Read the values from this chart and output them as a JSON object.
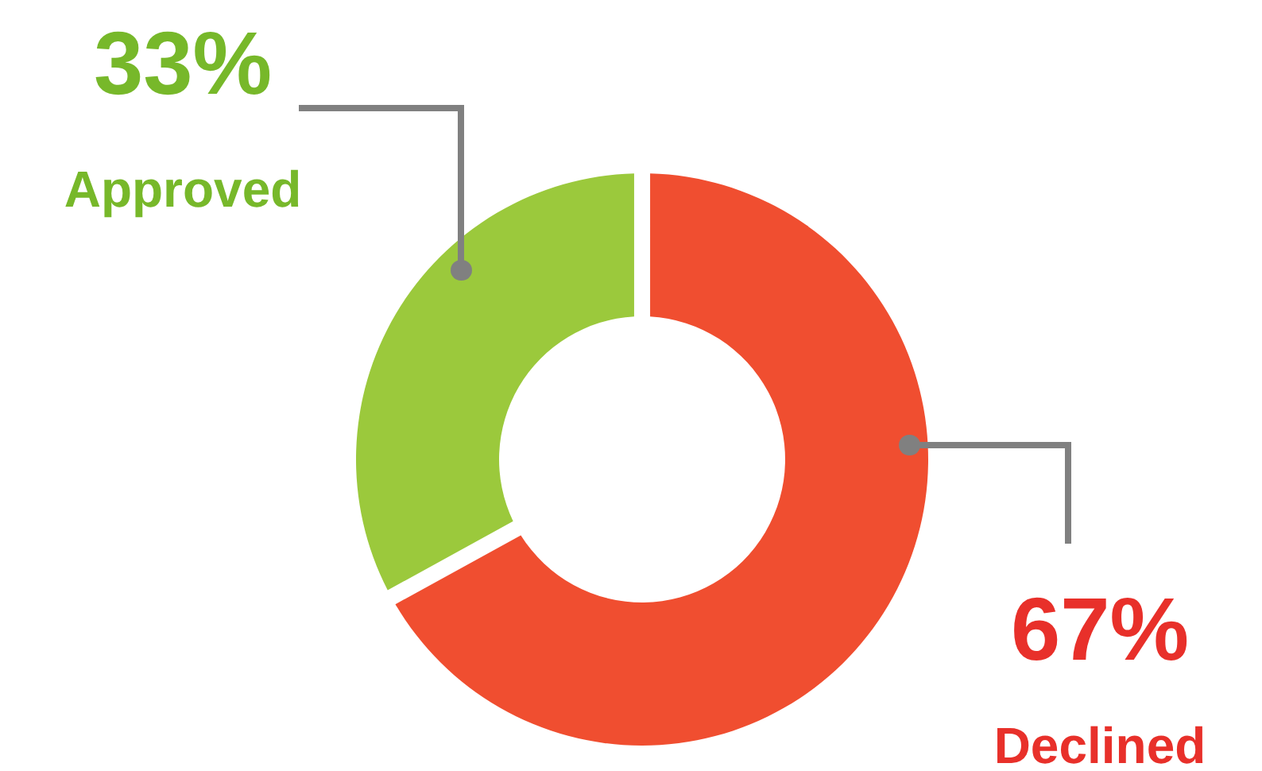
{
  "chart_data": {
    "type": "donut",
    "categories": [
      "Declined",
      "Approved"
    ],
    "values": [
      67,
      33
    ],
    "colors": [
      "#f04e30",
      "#9bc93c"
    ],
    "value_labels": [
      "67%",
      "33%"
    ]
  }
}
